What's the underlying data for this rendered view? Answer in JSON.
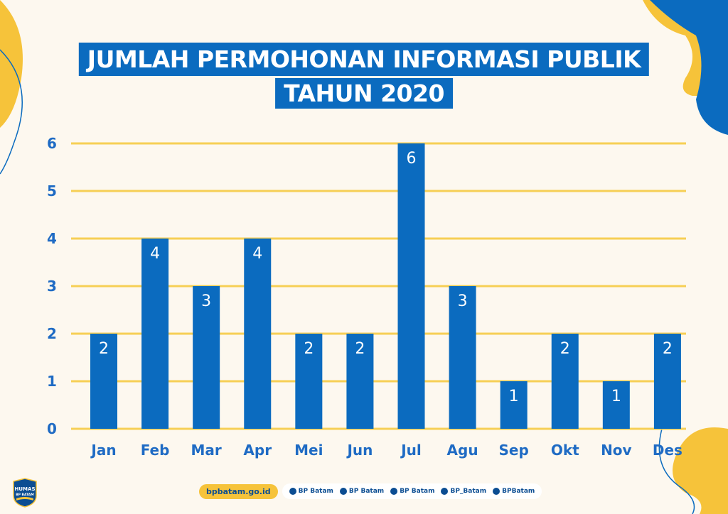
{
  "title": {
    "line1": "JUMLAH PERMOHONAN INFORMASI PUBLIK",
    "line2": "TAHUN 2020"
  },
  "chart_data": {
    "type": "bar",
    "categories": [
      "Jan",
      "Feb",
      "Mar",
      "Apr",
      "Mei",
      "Jun",
      "Jul",
      "Agu",
      "Sep",
      "Okt",
      "Nov",
      "Des"
    ],
    "values": [
      2,
      4,
      3,
      4,
      2,
      2,
      6,
      3,
      1,
      2,
      1,
      2
    ],
    "yticks": [
      0,
      1,
      2,
      3,
      4,
      5,
      6
    ],
    "ylim": [
      0,
      6
    ],
    "grid": true,
    "data_labels": true
  },
  "colors": {
    "bar": "#0b6bbf",
    "grid": "#f6cf55",
    "label": "#1f6bc4",
    "background": "#fdf8ef",
    "blob_yellow": "#f6c33a",
    "blob_blue": "#0b6bbf"
  },
  "footer": {
    "logo_text_1": "HUMAS",
    "logo_text_2": "BP BATAM",
    "website": "bpbatam.go.id",
    "socials": [
      {
        "icon": "youtube-icon",
        "label": "BP Batam"
      },
      {
        "icon": "facebook-icon",
        "label": "BP Batam"
      },
      {
        "icon": "instagram-icon",
        "label": "BP Batam"
      },
      {
        "icon": "x-icon",
        "label": "BP_Batam"
      },
      {
        "icon": "tiktok-icon",
        "label": "BPBatam"
      }
    ]
  }
}
